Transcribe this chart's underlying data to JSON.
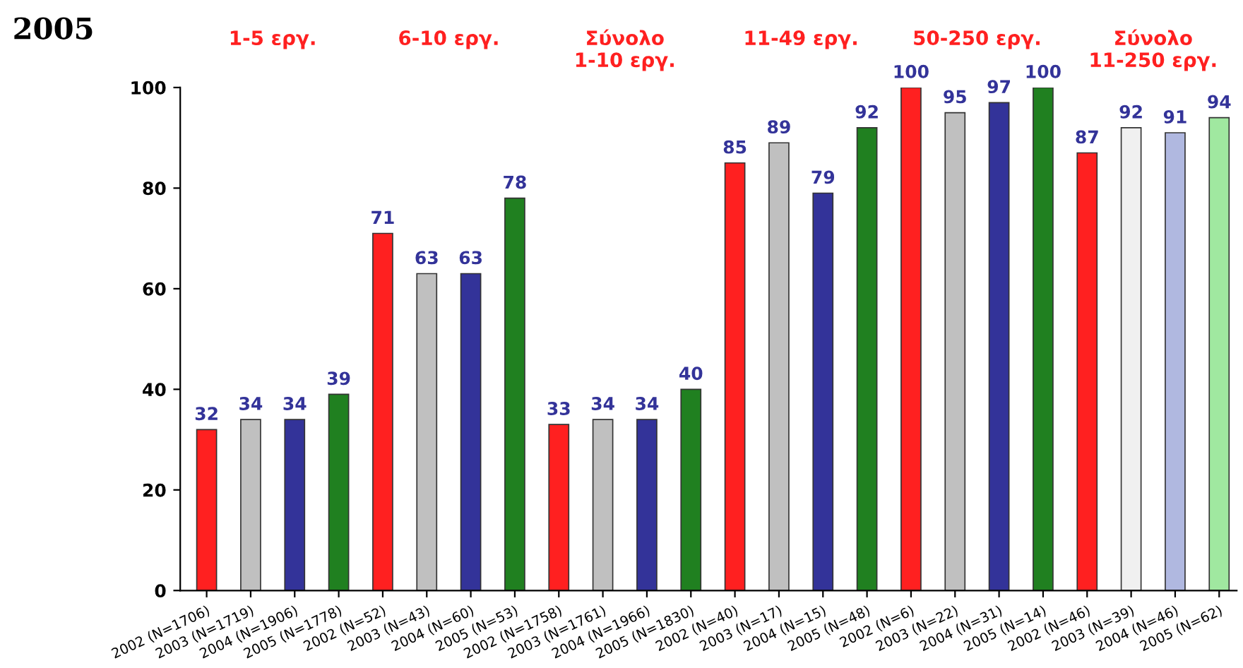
{
  "chart_data": {
    "type": "bar",
    "title": "2005",
    "categories": [
      "2002 (N=1706)",
      "2003 (N=1719)",
      "2004 (N=1906)",
      "2005 (N=1778)",
      "2002 (N=52)",
      "2003 (N=43)",
      "2004 (N=60)",
      "2005 (N=53)",
      "2002 (N=1758)",
      "2003 (N=1761)",
      "2004 (N=1966)",
      "2005 (N=1830)",
      "2002 (N=40)",
      "2003 (N=17)",
      "2004 (N=15)",
      "2005 (N=48)",
      "2002 (N=6)",
      "2003 (N=22)",
      "2004 (N=31)",
      "2005 (N=14)",
      "2002 (N=46)",
      "2003 (N=39)",
      "2004 (N=46)",
      "2005 (N=62)"
    ],
    "values": [
      32,
      34,
      34,
      39,
      71,
      63,
      63,
      78,
      33,
      34,
      34,
      40,
      85,
      89,
      79,
      92,
      100,
      95,
      97,
      100,
      87,
      92,
      91,
      94
    ],
    "colors": [
      "#ff2020",
      "#c0c0c0",
      "#333399",
      "#208020",
      "#ff2020",
      "#c0c0c0",
      "#333399",
      "#208020",
      "#ff2020",
      "#c0c0c0",
      "#333399",
      "#208020",
      "#ff2020",
      "#c0c0c0",
      "#333399",
      "#208020",
      "#ff2020",
      "#c0c0c0",
      "#333399",
      "#208020",
      "#ff2020",
      "#f0f0f0",
      "#b0b8e0",
      "#a0e8a0"
    ],
    "annotations": [
      "1-5 εργ.",
      "6-10 εργ.",
      "Σύνολο\n1-10 εργ.",
      "11-49 εργ.",
      "50-250 εργ.",
      "Σύνολο\n11-250 εργ."
    ],
    "ylim": [
      0,
      100
    ],
    "yticks": [
      0,
      20,
      40,
      60,
      80,
      100
    ],
    "grid": false,
    "data_labels": true
  }
}
